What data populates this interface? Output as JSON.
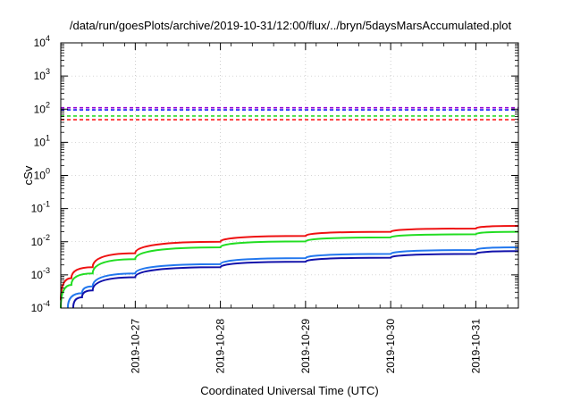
{
  "chart_data": {
    "type": "line",
    "title": "/data/run/goesPlots/archive/2019-10-31/12:00/flux/../bryn/5daysMarsAccumulated.plot",
    "xlabel": "Coordinated Universal Time (UTC)",
    "ylabel": "cSv",
    "yscale": "log",
    "ylim": [
      0.0001,
      10000
    ],
    "xlim": [
      "2019-10-26 03:00",
      "2019-10-31 12:00"
    ],
    "yticks": [
      {
        "base": "10",
        "exp": "-4",
        "value": 0.0001
      },
      {
        "base": "10",
        "exp": "-3",
        "value": 0.001
      },
      {
        "base": "10",
        "exp": "-2",
        "value": 0.01
      },
      {
        "base": "10",
        "exp": "-1",
        "value": 0.1
      },
      {
        "base": "10",
        "exp": "0",
        "value": 1
      },
      {
        "base": "10",
        "exp": "1",
        "value": 10
      },
      {
        "base": "10",
        "exp": "2",
        "value": 100
      },
      {
        "base": "10",
        "exp": "3",
        "value": 1000
      },
      {
        "base": "10",
        "exp": "4",
        "value": 10000
      }
    ],
    "xticks": [
      "2019-10-27",
      "2019-10-28",
      "2019-10-29",
      "2019-10-30",
      "2019-10-31"
    ],
    "thresholds": [
      {
        "color": "#9400d3",
        "value": 110
      },
      {
        "color": "#1a1aff",
        "value": 95
      },
      {
        "color": "#2bdc2b",
        "value": 62
      },
      {
        "color": "#ff1a1a",
        "value": 48
      }
    ],
    "series": [
      {
        "color": "#ee1111",
        "x": [
          "2019-10-26 03:00",
          "2019-10-26 06:00",
          "2019-10-26 12:00",
          "2019-10-27 00:00",
          "2019-10-28 00:00",
          "2019-10-29 00:00",
          "2019-10-30 00:00",
          "2019-10-31 00:00",
          "2019-10-31 12:00"
        ],
        "y": [
          0.00017,
          0.0008,
          0.0017,
          0.0045,
          0.01,
          0.015,
          0.02,
          0.025,
          0.03
        ]
      },
      {
        "color": "#22dd22",
        "x": [
          "2019-10-26 03:00",
          "2019-10-26 06:00",
          "2019-10-26 12:00",
          "2019-10-27 00:00",
          "2019-10-28 00:00",
          "2019-10-29 00:00",
          "2019-10-30 00:00",
          "2019-10-31 00:00",
          "2019-10-31 12:00"
        ],
        "y": [
          0.0001,
          0.0005,
          0.0011,
          0.003,
          0.0068,
          0.0102,
          0.0135,
          0.0168,
          0.02
        ]
      },
      {
        "color": "#2277ee",
        "x": [
          "2019-10-26 05:00",
          "2019-10-26 09:00",
          "2019-10-26 12:00",
          "2019-10-27 00:00",
          "2019-10-28 00:00",
          "2019-10-29 00:00",
          "2019-10-30 00:00",
          "2019-10-31 00:00",
          "2019-10-31 12:00"
        ],
        "y": [
          0.0001,
          0.00028,
          0.00045,
          0.0011,
          0.0021,
          0.0032,
          0.0043,
          0.0056,
          0.0068
        ]
      },
      {
        "color": "#1111aa",
        "x": [
          "2019-10-26 06:30",
          "2019-10-26 09:00",
          "2019-10-26 12:00",
          "2019-10-27 00:00",
          "2019-10-28 00:00",
          "2019-10-29 00:00",
          "2019-10-30 00:00",
          "2019-10-31 00:00",
          "2019-10-31 12:00"
        ],
        "y": [
          0.0001,
          0.00021,
          0.00034,
          0.00085,
          0.0017,
          0.0025,
          0.0033,
          0.0043,
          0.0052
        ]
      }
    ]
  }
}
